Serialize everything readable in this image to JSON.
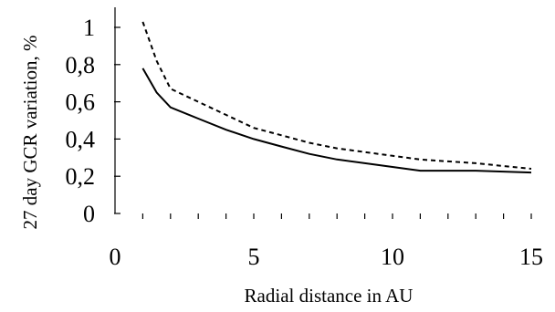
{
  "chart_data": {
    "type": "line",
    "title": "",
    "xlabel": "Radial distance in AU",
    "ylabel": "27 day GCR  variation, %",
    "xlim": [
      0,
      15
    ],
    "ylim": [
      0,
      1.05
    ],
    "x_ticks": [
      0,
      5,
      10,
      15
    ],
    "x_tick_labels": [
      "0",
      "5",
      "10",
      "15"
    ],
    "x_minor_ticks": [
      1,
      2,
      3,
      4,
      5,
      6,
      7,
      8,
      9,
      10,
      11,
      12,
      13,
      14,
      15
    ],
    "y_ticks": [
      0,
      0.2,
      0.4,
      0.6,
      0.8,
      1
    ],
    "y_tick_labels": [
      "0",
      "0,2",
      "0,4",
      "0,6",
      "0,8",
      "1"
    ],
    "grid": false,
    "series": [
      {
        "style": "solid",
        "x": [
          1,
          1.5,
          2,
          3,
          4,
          5,
          6,
          7,
          8,
          9,
          10,
          11,
          12,
          13,
          14,
          15
        ],
        "y": [
          0.78,
          0.65,
          0.57,
          0.51,
          0.45,
          0.4,
          0.36,
          0.32,
          0.29,
          0.27,
          0.25,
          0.23,
          0.23,
          0.23,
          0.225,
          0.22
        ]
      },
      {
        "style": "dotted",
        "x": [
          1,
          1.5,
          2,
          3,
          4,
          5,
          6,
          7,
          8,
          9,
          10,
          11,
          12,
          13,
          14,
          15
        ],
        "y": [
          1.03,
          0.82,
          0.67,
          0.6,
          0.53,
          0.46,
          0.42,
          0.38,
          0.35,
          0.33,
          0.31,
          0.29,
          0.28,
          0.27,
          0.255,
          0.24
        ]
      }
    ]
  }
}
